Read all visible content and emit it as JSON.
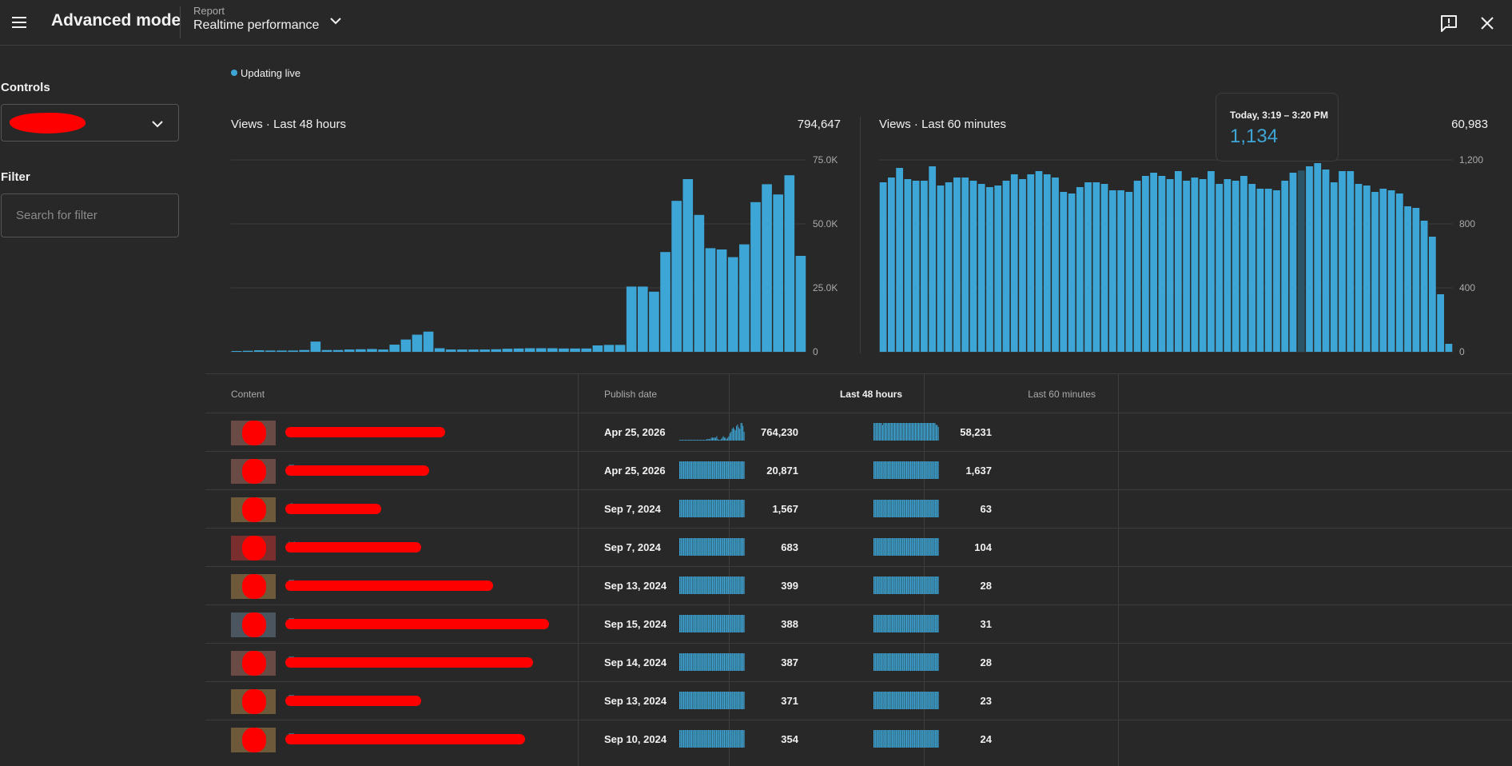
{
  "header": {
    "app_title": "Advanced mode",
    "report_label": "Report",
    "report_name": "Realtime performance"
  },
  "sidebar": {
    "controls_label": "Controls",
    "filter_label": "Filter",
    "filter_placeholder": "Search for filter"
  },
  "live_label": "Updating live",
  "tooltip": {
    "label": "Today, 3:19 – 3:20 PM",
    "value": "1,134"
  },
  "chart_data": [
    {
      "type": "bar",
      "title": "Views · Last 48 hours",
      "total": "794,647",
      "ylim": [
        0,
        75000
      ],
      "ytick_labels": [
        "75.0K",
        "50.0K",
        "25.0K",
        "0"
      ],
      "ytick_values": [
        75000,
        50000,
        25000,
        0
      ],
      "values": [
        300,
        400,
        600,
        500,
        500,
        500,
        700,
        4000,
        700,
        700,
        900,
        1000,
        1100,
        900,
        2800,
        4800,
        6700,
        7900,
        1400,
        900,
        900,
        900,
        900,
        1000,
        1200,
        1300,
        1400,
        1400,
        1400,
        1300,
        1300,
        1300,
        2500,
        2700,
        2700,
        25500,
        25500,
        23500,
        39000,
        59000,
        67500,
        53500,
        40500,
        40000,
        37000,
        42000,
        58500,
        65500,
        61500,
        69000,
        37500
      ]
    },
    {
      "type": "bar",
      "title": "Views · Last 60 minutes",
      "total": "60,983",
      "ylim": [
        0,
        1200
      ],
      "ytick_labels": [
        "1,200",
        "800",
        "400",
        "0"
      ],
      "ytick_values": [
        1200,
        800,
        400,
        0
      ],
      "highlight_index": 51,
      "values": [
        1060,
        1090,
        1150,
        1080,
        1070,
        1070,
        1160,
        1040,
        1060,
        1090,
        1090,
        1070,
        1050,
        1030,
        1040,
        1070,
        1110,
        1080,
        1110,
        1130,
        1110,
        1090,
        1000,
        990,
        1030,
        1060,
        1060,
        1050,
        1010,
        1010,
        1000,
        1070,
        1100,
        1120,
        1100,
        1080,
        1130,
        1070,
        1090,
        1080,
        1130,
        1050,
        1080,
        1070,
        1100,
        1050,
        1020,
        1020,
        1010,
        1070,
        1120,
        1134,
        1160,
        1180,
        1140,
        1060,
        1130,
        1130,
        1050,
        1040,
        1000,
        1020,
        1010,
        990,
        910,
        900,
        820,
        720,
        360,
        50
      ]
    }
  ],
  "table": {
    "headers": {
      "content": "Content",
      "publish_date": "Publish date",
      "last48": "Last 48 hours",
      "last60": "Last 60 minutes"
    },
    "rows": [
      {
        "peek": "",
        "date": "Apr 25, 2026",
        "v48": "764,230",
        "v60": "58,231",
        "thumb_color": "#6a4a44",
        "redact_w": 200,
        "spark48": [
          0,
          0,
          0,
          0,
          0,
          0,
          0,
          0,
          0,
          0,
          0,
          0,
          0,
          0,
          0,
          0,
          0,
          0,
          0,
          0,
          0,
          0,
          0,
          0,
          0,
          1,
          1,
          1,
          1,
          2,
          2,
          2,
          2,
          2,
          3,
          1,
          0,
          0,
          1,
          2,
          3,
          2,
          2,
          1,
          2,
          3,
          5,
          6,
          8,
          9,
          8,
          7,
          10,
          11,
          9,
          8,
          12,
          12,
          10,
          6
        ],
        "spark60": [
          9,
          9,
          9,
          9,
          9,
          9,
          9,
          9,
          8,
          9,
          9,
          9,
          9,
          9,
          9,
          9,
          9,
          9,
          9,
          9,
          9,
          9,
          9,
          9,
          9,
          9,
          9,
          9,
          9,
          9,
          9,
          9,
          9,
          9,
          9,
          9,
          9,
          9,
          9,
          9,
          9,
          9,
          9,
          9,
          9,
          9,
          9,
          9,
          9,
          9,
          9,
          9,
          9,
          9,
          9,
          9,
          9,
          8,
          8,
          7
        ]
      },
      {
        "peek": "T",
        "date": "Apr 25, 2026",
        "v48": "20,871",
        "v60": "1,637",
        "thumb_color": "#6a4a44",
        "redact_w": 180
      },
      {
        "peek": "A",
        "date": "Sep 7, 2024",
        "v48": "1,567",
        "v60": "63",
        "thumb_color": "#6e5a3a",
        "redact_w": 120
      },
      {
        "peek": "V",
        "date": "Sep 7, 2024",
        "v48": "683",
        "v60": "104",
        "thumb_color": "#7a2e2e",
        "redact_w": 170
      },
      {
        "peek": "T",
        "date": "Sep 13, 2024",
        "v48": "399",
        "v60": "28",
        "thumb_color": "#6e5a3a",
        "redact_w": 260
      },
      {
        "peek": "T",
        "date": "Sep 15, 2024",
        "v48": "388",
        "v60": "31",
        "thumb_color": "#4a5560",
        "redact_w": 330
      },
      {
        "peek": "T",
        "date": "Sep 14, 2024",
        "v48": "387",
        "v60": "28",
        "thumb_color": "#6a4a44",
        "redact_w": 310
      },
      {
        "peek": "T",
        "date": "Sep 13, 2024",
        "v48": "371",
        "v60": "23",
        "thumb_color": "#6e5a3a",
        "redact_w": 170
      },
      {
        "peek": "T",
        "date": "Sep 10, 2024",
        "v48": "354",
        "v60": "24",
        "thumb_color": "#6e5a3a",
        "redact_w": 300
      }
    ]
  },
  "colors": {
    "accent": "#3ea6d6",
    "highlight_bar": "#2b5466",
    "redaction": "#ff0000"
  },
  "icons": {
    "menu": "hamburger-icon",
    "chevron": "chevron-down-icon",
    "feedback": "feedback-icon",
    "close": "close-icon"
  }
}
